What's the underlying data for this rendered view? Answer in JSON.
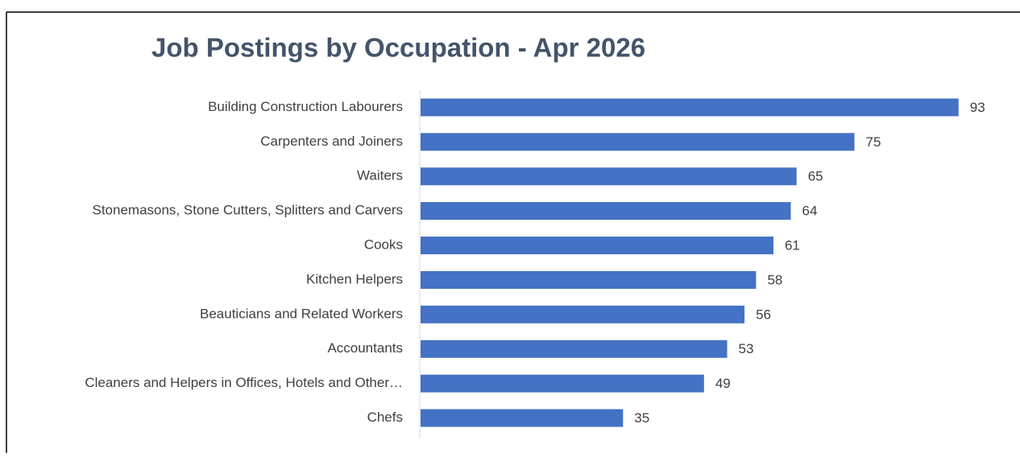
{
  "chart_data": {
    "type": "bar",
    "orientation": "horizontal",
    "title": "Job Postings by Occupation - Apr 2026",
    "categories": [
      "Building Construction Labourers",
      "Carpenters and Joiners",
      "Waiters",
      "Stonemasons, Stone Cutters, Splitters and Carvers",
      "Cooks",
      "Kitchen Helpers",
      "Beauticians and Related Workers",
      "Accountants",
      "Cleaners and Helpers in Offices, Hotels and Other…",
      "Chefs"
    ],
    "values": [
      93,
      75,
      65,
      64,
      61,
      58,
      56,
      53,
      49,
      35
    ],
    "color": "#4472c4",
    "xlim": [
      0,
      100
    ]
  }
}
